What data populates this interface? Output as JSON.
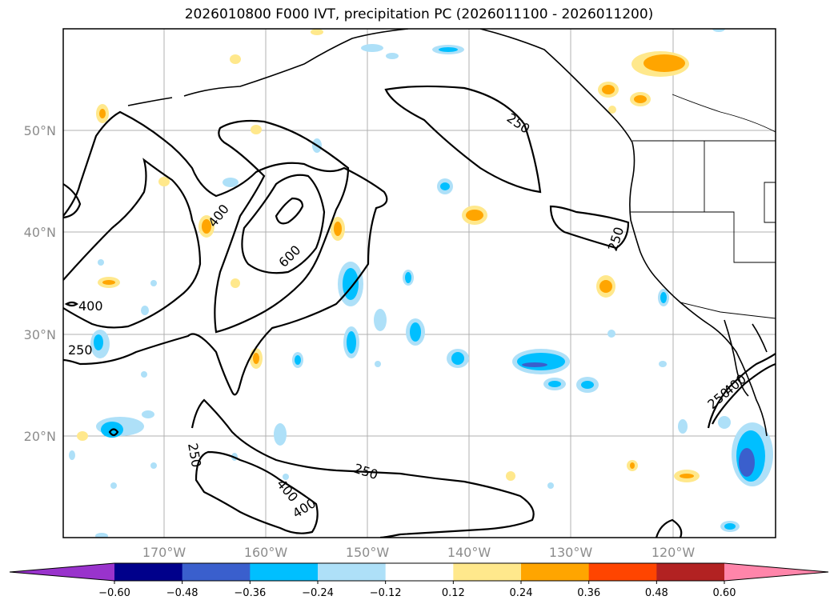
{
  "title": "2026010800 F000 IVT, precipitation PC (2026011100 - 2026011200)",
  "map": {
    "lon_labels": [
      "170°W",
      "160°W",
      "150°W",
      "140°W",
      "130°W",
      "120°W"
    ],
    "lat_labels": [
      "50°N",
      "40°N",
      "30°N",
      "20°N"
    ],
    "ivt_contour_labels": [
      "250",
      "400",
      "600",
      "400",
      "400",
      "250",
      "250",
      "250",
      "400",
      "250",
      "250",
      "400"
    ],
    "contour_levels": [
      250,
      400,
      600
    ]
  },
  "colorbar": {
    "ticks": [
      "−0.60",
      "−0.48",
      "−0.36",
      "−0.24",
      "−0.12",
      "0.12",
      "0.24",
      "0.36",
      "0.48",
      "0.60"
    ],
    "colors": [
      "#9933cc",
      "#00008b",
      "#3a5fcd",
      "#00bfff",
      "#aee0f8",
      "#ffffff",
      "#ffe88c",
      "#ffa500",
      "#ff4500",
      "#b22222",
      "#ff85aa"
    ]
  }
}
